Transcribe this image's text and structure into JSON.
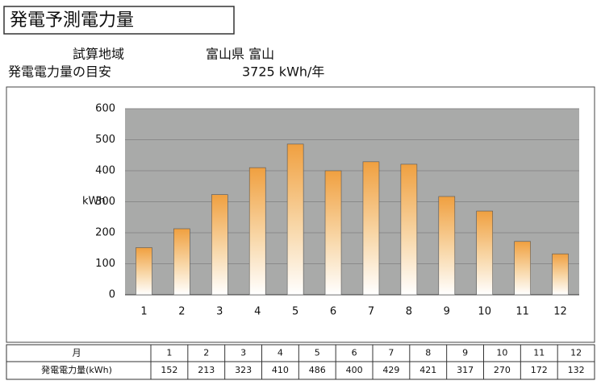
{
  "header": {
    "title": "発電予測電力量"
  },
  "info": {
    "region_label": "試算地域",
    "region": "富山県 富山",
    "estimate_label": "発電電力量の目安",
    "estimate": "3725 kWh/年"
  },
  "chart_data": {
    "type": "bar",
    "y_label": "kWh",
    "categories": [
      "1",
      "2",
      "3",
      "4",
      "5",
      "6",
      "7",
      "8",
      "9",
      "10",
      "11",
      "12"
    ],
    "values": [
      152,
      213,
      323,
      410,
      486,
      400,
      429,
      421,
      317,
      270,
      172,
      132
    ],
    "color": "#f0a040",
    "ylim": [
      0,
      600
    ],
    "yticks": [
      0,
      100,
      200,
      300,
      400,
      500,
      600
    ],
    "grid": true
  },
  "table": {
    "header": "月",
    "row_label": "発電電力量(kWh)"
  }
}
